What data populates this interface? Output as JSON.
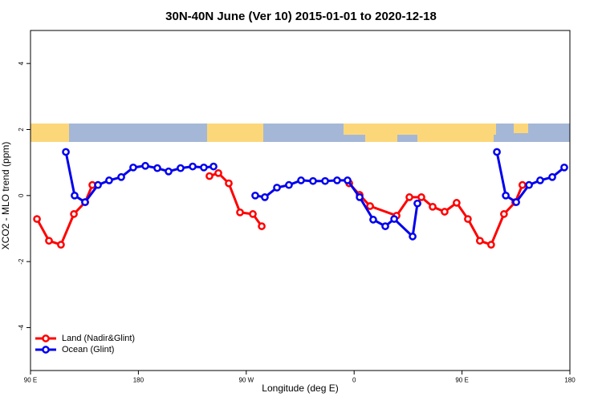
{
  "chart_data": {
    "type": "line",
    "title": "30N-40N June (Ver 10)   2015-01-01 to 2020-12-18",
    "x_label": "Longitude (deg E)",
    "y_label": "XCO2 - MLO trend (ppm)",
    "xlim": [
      90,
      540
    ],
    "ylim": [
      -5.3,
      5.0
    ],
    "xticks": [
      {
        "value": 90,
        "label": "90 E"
      },
      180,
      {
        "value": 270,
        "label": "90 W"
      },
      {
        "value": 360,
        "label": "0"
      },
      {
        "value": 450,
        "label": "90 E"
      },
      {
        "value": 540,
        "label": "180"
      }
    ],
    "yticks": [
      -4,
      -2,
      0,
      2,
      4
    ],
    "legend": "bottomleft",
    "series": [
      {
        "name": "Land (Nadir&Glint)",
        "color": "#ff0000",
        "x": [
          95.4,
          105.4,
          115.4,
          126.2,
          135.6,
          141.6,
          null,
          239.3,
          246.7,
          255.4,
          264.8,
          275.5,
          282.9,
          null,
          355.9,
          364.6,
          373.3,
          395.4,
          406.1,
          416.1,
          425.5,
          435.5,
          445.5,
          454.9,
          464.9,
          474.3,
          485.0,
          494.4,
          500.4
        ],
        "values": [
          -0.71,
          -1.37,
          -1.49,
          -0.56,
          -0.2,
          0.32,
          null,
          0.59,
          0.68,
          0.37,
          -0.51,
          -0.56,
          -0.93,
          null,
          0.37,
          0.02,
          -0.32,
          -0.61,
          -0.05,
          -0.05,
          -0.34,
          -0.49,
          -0.22,
          -0.71,
          -1.37,
          -1.49,
          -0.56,
          -0.2,
          0.32
        ]
      },
      {
        "name": "Ocean (Glint)",
        "color": "#0000ee",
        "x": [
          119.5,
          126.8,
          135.5,
          146.3,
          155.6,
          165.7,
          175.7,
          185.8,
          195.8,
          205.2,
          215.2,
          225.3,
          234.6,
          242.7,
          null,
          277.5,
          285.5,
          295.6,
          305.6,
          315.7,
          325.7,
          335.8,
          345.8,
          354.5,
          364.6,
          375.9,
          386.0,
          393.4,
          408.8,
          412.8,
          null,
          479.1,
          486.5,
          495.2,
          505.9,
          515.2,
          525.3,
          535.3
        ],
        "values": [
          1.32,
          0,
          -0.2,
          0.32,
          0.46,
          0.56,
          0.85,
          0.9,
          0.83,
          0.73,
          0.83,
          0.88,
          0.85,
          0.88,
          null,
          0,
          -0.05,
          0.24,
          0.32,
          0.46,
          0.44,
          0.44,
          0.46,
          0.46,
          -0.05,
          -0.73,
          -0.93,
          -0.71,
          -1.24,
          -0.24,
          null,
          1.32,
          0,
          -0.2,
          0.32,
          0.46,
          0.56,
          0.85
        ]
      }
    ]
  }
}
